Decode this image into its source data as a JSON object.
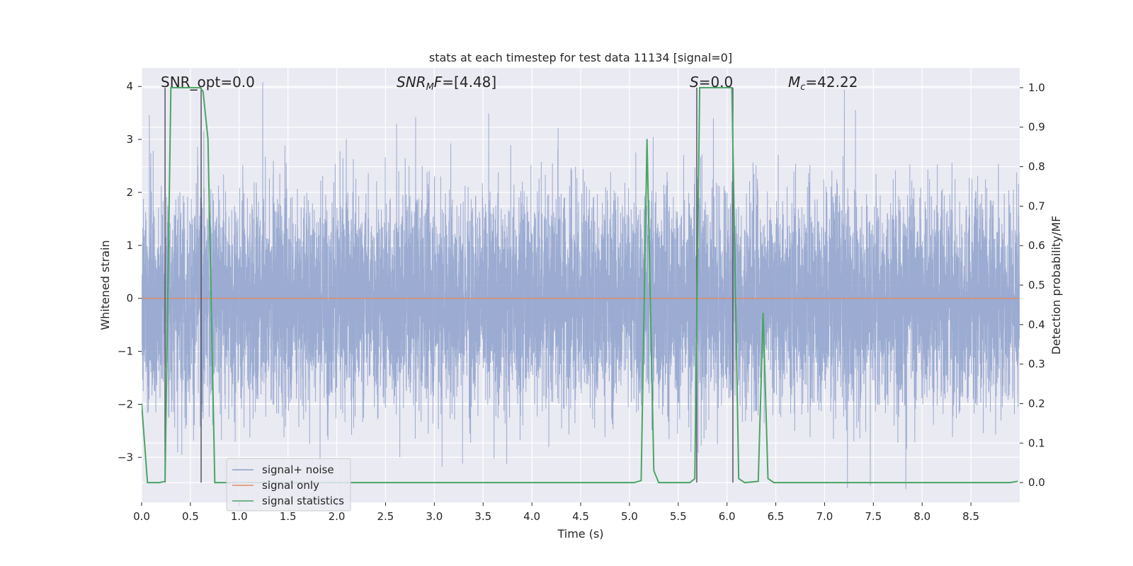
{
  "chart_data": {
    "type": "line",
    "title": "stats at each timestep for test data 11134 [signal=0]",
    "xlabel": "Time (s)",
    "ylabel_left": "Whitened strain",
    "ylabel_right": "Detection probability/MF",
    "xlim": [
      0.0,
      9.0
    ],
    "ylim_left": [
      -3.85,
      4.35
    ],
    "ylim_right": [
      -0.05,
      1.05
    ],
    "x_ticks": [
      0.0,
      0.5,
      1.0,
      1.5,
      2.0,
      2.5,
      3.0,
      3.5,
      4.0,
      4.5,
      5.0,
      5.5,
      6.0,
      6.5,
      7.0,
      7.5,
      8.0,
      8.5
    ],
    "x_tick_labels": [
      "0.0",
      "0.5",
      "1.0",
      "1.5",
      "2.0",
      "2.5",
      "3.0",
      "3.5",
      "4.0",
      "4.5",
      "5.0",
      "5.5",
      "6.0",
      "6.5",
      "7.0",
      "7.5",
      "8.0",
      "8.5"
    ],
    "y_left_ticks": [
      -3,
      -2,
      -1,
      0,
      1,
      2,
      3,
      4
    ],
    "y_left_tick_labels": [
      "−3",
      "−2",
      "−1",
      "0",
      "1",
      "2",
      "3",
      "4"
    ],
    "y_right_ticks": [
      0.0,
      0.1,
      0.2,
      0.3,
      0.4,
      0.5,
      0.6,
      0.7,
      0.8,
      0.9,
      1.0
    ],
    "y_right_tick_labels": [
      "0.0",
      "0.1",
      "0.2",
      "0.3",
      "0.4",
      "0.5",
      "0.6",
      "0.7",
      "0.8",
      "0.9",
      "1.0"
    ],
    "grid": true,
    "legend_position": "lower-left",
    "annotations": [
      {
        "id": "snr_opt",
        "text": "SNR_opt=0.0",
        "x": 0.2,
        "y": 4.0,
        "axis": "left"
      },
      {
        "id": "snr_mf",
        "text": "SNR_MF=[4.48]",
        "x": 2.6,
        "y": 4.0,
        "axis": "left"
      },
      {
        "id": "s_val",
        "text": "S=0.0",
        "x": 5.6,
        "y": 4.0,
        "axis": "left"
      },
      {
        "id": "mc_val",
        "text": "M_c=42.22",
        "x": 6.6,
        "y": 4.0,
        "axis": "left"
      }
    ],
    "vertical_lines": [
      0.24,
      0.61,
      5.69,
      6.06
    ],
    "series": [
      {
        "name": "signal+ noise",
        "color": "#8da0cb",
        "axis": "left",
        "style": "dense-noise",
        "sample_rate_hz": 2048,
        "duration_s": 9.0,
        "std": 1.0
      },
      {
        "name": "signal only",
        "color": "#e08a66",
        "axis": "left",
        "x": [
          0.0,
          9.0
        ],
        "y": [
          0.0,
          0.0
        ]
      },
      {
        "name": "signal statistics",
        "color": "#4aa564",
        "axis": "right",
        "x": [
          0.0,
          0.06,
          0.12,
          0.18,
          0.24,
          0.3,
          0.36,
          0.42,
          0.48,
          0.54,
          0.6,
          0.63,
          0.68,
          0.75,
          0.8,
          5.05,
          5.12,
          5.18,
          5.25,
          5.3,
          5.62,
          5.67,
          5.72,
          5.78,
          6.05,
          6.12,
          6.18,
          6.32,
          6.37,
          6.42,
          6.48,
          8.9,
          8.98
        ],
        "y": [
          0.2,
          0.0,
          0.0,
          0.0,
          0.003,
          1.0,
          1.0,
          1.0,
          1.0,
          1.0,
          1.0,
          0.99,
          0.87,
          0.0,
          0.0,
          0.0,
          0.005,
          0.87,
          0.03,
          0.0,
          0.0,
          0.01,
          1.0,
          1.0,
          1.0,
          0.01,
          0.0,
          0.003,
          0.43,
          0.01,
          0.0,
          0.0,
          0.003
        ]
      }
    ]
  }
}
